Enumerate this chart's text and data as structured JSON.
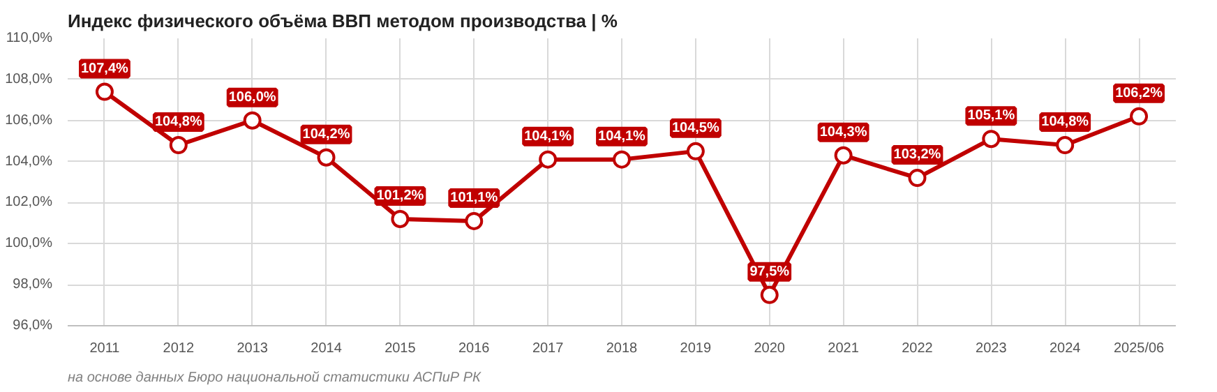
{
  "chart_data": {
    "type": "line",
    "title": "Индекс физического объёма ВВП методом производства | %",
    "categories": [
      "2011",
      "2012",
      "2013",
      "2014",
      "2015",
      "2016",
      "2017",
      "2018",
      "2019",
      "2020",
      "2021",
      "2022",
      "2023",
      "2024",
      "2025/06"
    ],
    "series": [
      {
        "color": "#c00000",
        "values": [
          107.4,
          104.8,
          106.0,
          104.2,
          101.2,
          101.1,
          104.1,
          104.1,
          104.5,
          97.5,
          104.3,
          103.2,
          105.1,
          104.8,
          106.2
        ],
        "value_labels": [
          "107,4%",
          "104,8%",
          "106,0%",
          "104,2%",
          "101,2%",
          "101,1%",
          "104,1%",
          "104,1%",
          "104,5%",
          "97,5%",
          "104,3%",
          "103,2%",
          "105,1%",
          "104,8%",
          "106,2%"
        ]
      }
    ],
    "ylim": [
      96,
      110
    ],
    "yticks": [
      {
        "value": 96,
        "label": "96,0%"
      },
      {
        "value": 98,
        "label": "98,0%"
      },
      {
        "value": 100,
        "label": "100,0%"
      },
      {
        "value": 102,
        "label": "102,0%"
      },
      {
        "value": 104,
        "label": "104,0%"
      },
      {
        "value": 106,
        "label": "106,0%"
      },
      {
        "value": 108,
        "label": "108,0%"
      },
      {
        "value": 110,
        "label": "110,0%"
      }
    ],
    "grid": true,
    "marker": "circle",
    "line_style": "solid",
    "annotations": [
      "на основе данных Бюро национальной статистики АСПиР РК"
    ]
  }
}
